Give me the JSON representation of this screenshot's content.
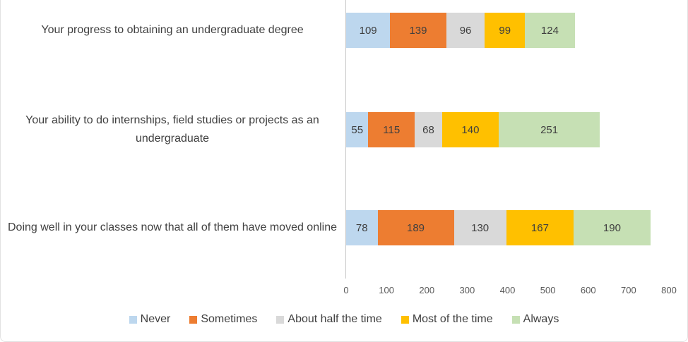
{
  "chart_data": {
    "type": "bar",
    "orientation": "horizontal",
    "stacked": true,
    "title": "",
    "xlabel": "",
    "ylabel": "",
    "xlim": [
      0,
      800
    ],
    "x_ticks": [
      "0",
      "100",
      "200",
      "300",
      "400",
      "500",
      "600",
      "700",
      "800"
    ],
    "grid": false,
    "legend_position": "bottom",
    "categories": [
      "Your progress to obtaining an undergraduate degree",
      "Your ability to do internships, field studies or projects as an undergraduate",
      "Doing well in your classes now that all of them have moved online"
    ],
    "series": [
      {
        "name": "Never",
        "color": "#BDD7EE",
        "values": [
          109,
          55,
          78
        ]
      },
      {
        "name": "Sometimes",
        "color": "#ED7D31",
        "values": [
          139,
          115,
          189
        ]
      },
      {
        "name": "About half the time",
        "color": "#D9D9D9",
        "values": [
          96,
          68,
          130
        ]
      },
      {
        "name": "Most of the time",
        "color": "#FFC000",
        "values": [
          99,
          140,
          167
        ]
      },
      {
        "name": "Always",
        "color": "#C6E0B4",
        "values": [
          124,
          251,
          190
        ]
      }
    ],
    "axis_line_color": "#C9C9C9"
  }
}
